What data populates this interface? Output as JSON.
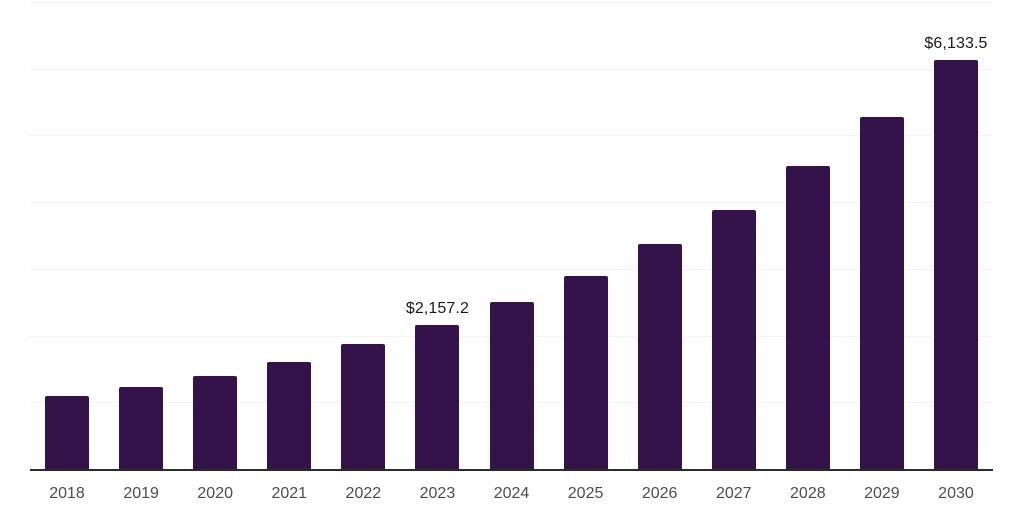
{
  "chart_data": {
    "type": "bar",
    "title": "",
    "xlabel": "",
    "ylabel": "",
    "categories": [
      "2018",
      "2019",
      "2020",
      "2021",
      "2022",
      "2023",
      "2024",
      "2025",
      "2026",
      "2027",
      "2028",
      "2029",
      "2030"
    ],
    "values": [
      1090,
      1230,
      1390,
      1600,
      1880,
      2157.2,
      2500,
      2900,
      3370,
      3890,
      4540,
      5280,
      6133.5
    ],
    "data_labels": {
      "2023": "$2,157.2",
      "2030": "$6,133.5"
    },
    "ylim": [
      0,
      7000
    ],
    "gridline_step": 1000,
    "grid": "horizontal-only",
    "legend": "none",
    "y_axis_labels_visible": false,
    "colors": {
      "bar": "#34134a",
      "axis_line": "#2b2b2b",
      "gridline": "#f2f2f2",
      "tick_label": "#4d4d4d",
      "data_label": "#1a1a1a",
      "background": "#ffffff"
    }
  }
}
